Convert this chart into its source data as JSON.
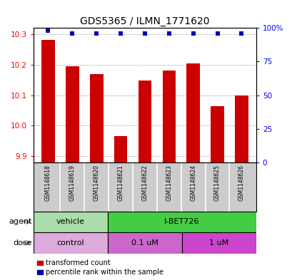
{
  "title": "GDS5365 / ILMN_1771620",
  "samples": [
    "GSM1148618",
    "GSM1148619",
    "GSM1148620",
    "GSM1148621",
    "GSM1148622",
    "GSM1148623",
    "GSM1148624",
    "GSM1148625",
    "GSM1148626"
  ],
  "red_values": [
    10.28,
    10.195,
    10.17,
    9.965,
    10.148,
    10.18,
    10.205,
    10.065,
    10.1
  ],
  "blue_values": [
    98,
    96,
    96,
    96,
    96,
    96,
    96,
    96,
    96
  ],
  "ylim_left": [
    9.88,
    10.32
  ],
  "ylim_right": [
    0,
    100
  ],
  "yticks_left": [
    9.9,
    10.0,
    10.1,
    10.2,
    10.3
  ],
  "yticks_right": [
    0,
    25,
    50,
    75,
    100
  ],
  "ytick_right_labels": [
    "0",
    "25",
    "50",
    "75",
    "100%"
  ],
  "agent_labels": [
    "vehicle",
    "I-BET726"
  ],
  "agent_colors": [
    "#aaddaa",
    "#44cc44"
  ],
  "dose_labels": [
    "control",
    "0.1 uM",
    "1 uM"
  ],
  "dose_colors": [
    "#ddaadd",
    "#cc66cc",
    "#cc44cc"
  ],
  "legend_red": "transformed count",
  "legend_blue": "percentile rank within the sample",
  "bar_color": "#cc0000",
  "dot_color": "#0000bb",
  "sample_bg": "#cccccc",
  "plot_bg": "#ffffff",
  "grid_color": "#888888",
  "bar_width": 0.55
}
